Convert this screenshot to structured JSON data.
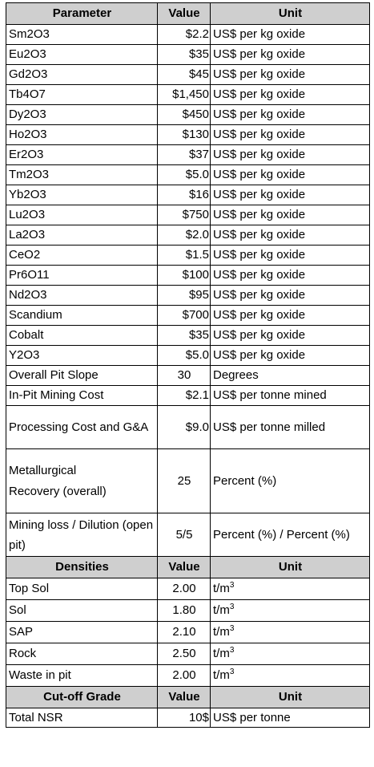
{
  "main_table": {
    "headers": [
      "Parameter",
      "Value",
      "Unit"
    ],
    "rows": [
      {
        "parameter": "Sm2O3",
        "value": "$2.2",
        "unit": "US$ per kg oxide"
      },
      {
        "parameter": "Eu2O3",
        "value": "$35",
        "unit": "US$ per kg oxide"
      },
      {
        "parameter": "Gd2O3",
        "value": "$45",
        "unit": "US$ per kg oxide"
      },
      {
        "parameter": "Tb4O7",
        "value": "$1,450",
        "unit": "US$ per kg oxide"
      },
      {
        "parameter": "Dy2O3",
        "value": "$450",
        "unit": "US$ per kg oxide"
      },
      {
        "parameter": "Ho2O3",
        "value": "$130",
        "unit": "US$ per kg oxide"
      },
      {
        "parameter": "Er2O3",
        "value": "$37",
        "unit": "US$ per kg oxide"
      },
      {
        "parameter": "Tm2O3",
        "value": "$5.0",
        "unit": "US$ per kg oxide"
      },
      {
        "parameter": "Yb2O3",
        "value": "$16",
        "unit": "US$ per kg oxide"
      },
      {
        "parameter": "Lu2O3",
        "value": "$750",
        "unit": "US$ per kg oxide"
      },
      {
        "parameter": "La2O3",
        "value": "$2.0",
        "unit": "US$ per kg oxide"
      },
      {
        "parameter": "CeO2",
        "value": "$1.5",
        "unit": "US$ per kg oxide"
      },
      {
        "parameter": "Pr6O11",
        "value": "$100",
        "unit": "US$ per kg oxide"
      },
      {
        "parameter": "Nd2O3",
        "value": "$95",
        "unit": "US$ per kg oxide"
      },
      {
        "parameter": "Scandium",
        "value": "$700",
        "unit": "US$ per kg oxide"
      },
      {
        "parameter": "Cobalt",
        "value": "$35",
        "unit": "US$ per kg oxide"
      },
      {
        "parameter": "Y2O3",
        "value": "$5.0",
        "unit": "US$ per kg oxide"
      },
      {
        "parameter": "Overall Pit Slope",
        "value": "30",
        "unit": "Degrees"
      },
      {
        "parameter": "In-Pit Mining Cost",
        "value": "$2.1",
        "unit": "US$ per tonne mined"
      },
      {
        "parameter": "Processing Cost and G&A",
        "value": "$9.0",
        "unit": "US$ per tonne milled"
      },
      {
        "parameter": "Metallurgical Recovery (overall)",
        "value": "25",
        "unit": "Percent (%)"
      },
      {
        "parameter": "Mining loss / Dilution (open pit)",
        "value": "5/5",
        "unit": "Percent (%) / Percent (%)"
      }
    ]
  },
  "densities_table": {
    "headers": [
      "Densities",
      "Value",
      "Unit"
    ],
    "unit_base": "t/m",
    "unit_exp": "3",
    "rows": [
      {
        "parameter": "Top Sol",
        "value": "2.00"
      },
      {
        "parameter": "Sol",
        "value": "1.80"
      },
      {
        "parameter": "SAP",
        "value": "2.10"
      },
      {
        "parameter": "Rock",
        "value": "2.50"
      },
      {
        "parameter": "Waste in pit",
        "value": "2.00"
      }
    ]
  },
  "cutoff_table": {
    "headers": [
      "Cut-off Grade",
      "Value",
      "Unit"
    ],
    "rows": [
      {
        "parameter": "Total NSR",
        "value": "10$",
        "unit": "US$ per tonne"
      }
    ]
  }
}
